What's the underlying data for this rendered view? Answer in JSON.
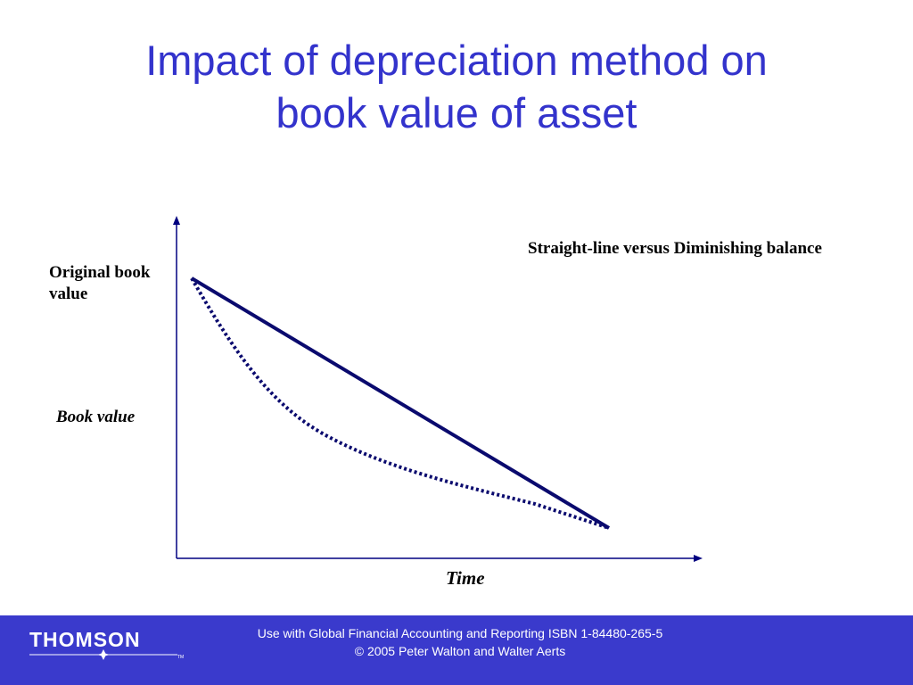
{
  "header": {
    "title": "Impact of depreciation method on book value of asset"
  },
  "diagram": {
    "subtitle": "Straight-line versus Diminishing balance",
    "y_label_top": "Original book value",
    "y_label": "Book value",
    "x_label": "Time"
  },
  "footer": {
    "line1": "Use with Global Financial Accounting and Reporting ISBN 1-84480-265-5",
    "line2": "© 2005 Peter Walton and Walter Aerts",
    "logo": "THOMSON",
    "trademark": "TM"
  }
}
